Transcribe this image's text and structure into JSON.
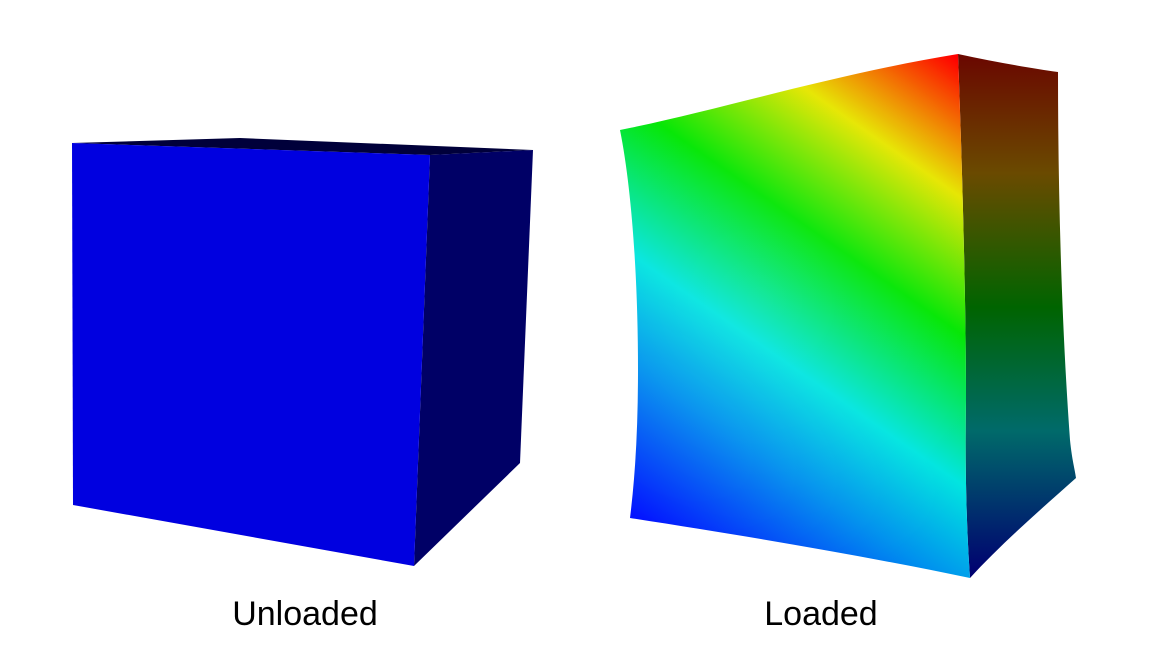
{
  "panels": {
    "unloaded": {
      "label": "Unloaded",
      "face_color": "#0000e0",
      "side_color": "#000066",
      "top_color": "#00003a"
    },
    "loaded": {
      "label": "Loaded",
      "colormap": [
        "#0000ff",
        "#00e5e5",
        "#00e600",
        "#e6e600",
        "#ff0000"
      ]
    }
  }
}
